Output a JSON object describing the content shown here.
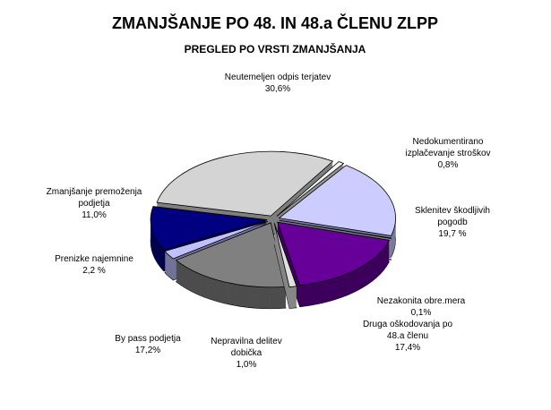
{
  "chart_data": {
    "type": "pie3d",
    "title": "ZMANJŠANJE PO 48. IN 48.a ČLENU ZLPP",
    "subtitle": "PREGLED PO VRSTI ZMANJŠANJA",
    "categories": [
      "Neutemeljen odpis terjatev",
      "Nedokumentirano izplačevanje stroškov",
      "Sklenitev škodljivih pogodb",
      "Nezakonita obre.mera",
      "Druga oškodovanja po 48.a členu",
      "Nepravilna delitev dobička",
      "By pass podjetja",
      "Prenizke najemnine",
      "Zmanjšanje premoženja podjetja"
    ],
    "values": [
      30.6,
      0.8,
      19.7,
      0.1,
      17.4,
      1.0,
      17.2,
      2.2,
      11.0
    ],
    "value_labels": [
      "30,6%",
      "0,8%",
      "19,7 %",
      "0,1%",
      "17,4%",
      "1,0%",
      "17,2%",
      "2,2 %",
      "11,0%"
    ],
    "colors": [
      "#d4d4d4",
      "#f2f2f2",
      "#ccccff",
      "#e8e8e8",
      "#660099",
      "#e0e0e0",
      "#808080",
      "#c0c0ff",
      "#000080"
    ]
  }
}
